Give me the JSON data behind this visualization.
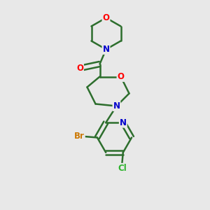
{
  "background_color": "#e8e8e8",
  "bond_color": "#2d6e2d",
  "atom_colors": {
    "O": "#ff0000",
    "N": "#0000cc",
    "Br": "#cc7700",
    "Cl": "#2db32d",
    "C": "#2d6e2d"
  },
  "line_width": 1.8
}
